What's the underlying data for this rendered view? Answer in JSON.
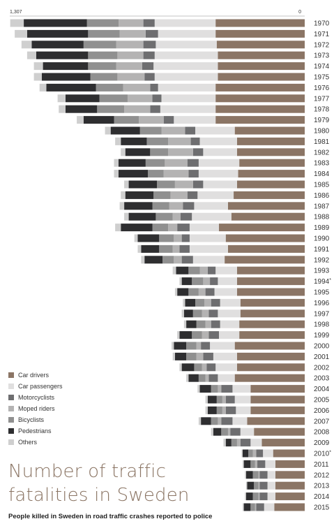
{
  "chart_data": {
    "type": "bar",
    "orientation": "horizontal-stacked",
    "title": "Number of traffic fatalities in Sweden",
    "subtitle": "People killed in Sweden in road traffic crashes reported to police",
    "axis": {
      "left_label": "1,307",
      "right_label": "0",
      "max": 1307
    },
    "categories": [
      "1970",
      "1971",
      "1972",
      "1973",
      "1974",
      "1975",
      "1976",
      "1977",
      "1978",
      "1979",
      "1980",
      "1981",
      "1982",
      "1983",
      "1984",
      "1985",
      "1986",
      "1987",
      "1988",
      "1989",
      "1990",
      "1991",
      "1992",
      "1993",
      "1994*",
      "1995",
      "1996",
      "1997",
      "1998",
      "1999",
      "2000",
      "2001",
      "2002",
      "2003",
      "2004",
      "2005",
      "2006",
      "2007",
      "2008",
      "2009",
      "2010*",
      "2011",
      "2012",
      "2013",
      "2014",
      "2015"
    ],
    "series": [
      {
        "name": "Car drivers",
        "color": "#8b7565",
        "values": [
          395,
          395,
          390,
          385,
          385,
          385,
          395,
          395,
          395,
          395,
          310,
          300,
          300,
          290,
          295,
          300,
          315,
          340,
          325,
          380,
          350,
          340,
          355,
          300,
          300,
          300,
          285,
          285,
          290,
          290,
          310,
          300,
          300,
          310,
          240,
          240,
          240,
          255,
          225,
          190,
          140,
          130,
          130,
          130,
          130,
          135
        ]
      },
      {
        "name": "Car passengers",
        "color": "#e0dfdf",
        "values": [
          270,
          255,
          270,
          280,
          285,
          280,
          255,
          240,
          245,
          185,
          175,
          165,
          150,
          180,
          175,
          150,
          160,
          150,
          175,
          130,
          160,
          170,
          140,
          95,
          85,
          100,
          90,
          100,
          85,
          90,
          110,
          105,
          95,
          75,
          80,
          70,
          65,
          65,
          60,
          50,
          45,
          45,
          35,
          35,
          35,
          45
        ]
      },
      {
        "name": "Motorcyclists",
        "color": "#6e6e70",
        "values": [
          50,
          55,
          55,
          50,
          50,
          45,
          35,
          40,
          45,
          45,
          45,
          40,
          45,
          50,
          45,
          45,
          45,
          50,
          50,
          55,
          35,
          45,
          50,
          35,
          35,
          40,
          40,
          40,
          40,
          45,
          40,
          45,
          40,
          40,
          50,
          40,
          45,
          50,
          45,
          45,
          30,
          35,
          35,
          35,
          35,
          35
        ]
      },
      {
        "name": "Moped riders",
        "color": "#b4b3b3",
        "values": [
          110,
          115,
          120,
          115,
          115,
          120,
          120,
          110,
          115,
          110,
          105,
          100,
          110,
          100,
          110,
          80,
          75,
          60,
          35,
          40,
          35,
          30,
          35,
          35,
          30,
          30,
          30,
          30,
          25,
          30,
          20,
          30,
          20,
          15,
          15,
          15,
          15,
          15,
          10,
          15,
          15,
          10,
          5,
          5,
          5,
          5
        ]
      },
      {
        "name": "Bicyclists",
        "color": "#909090",
        "values": [
          140,
          140,
          145,
          130,
          125,
          120,
          120,
          125,
          120,
          110,
          95,
          95,
          80,
          85,
          70,
          80,
          75,
          75,
          75,
          70,
          65,
          60,
          50,
          50,
          50,
          45,
          40,
          40,
          40,
          45,
          45,
          45,
          35,
          30,
          30,
          25,
          25,
          30,
          30,
          25,
          20,
          20,
          25,
          20,
          25,
          20
        ]
      },
      {
        "name": "Pedestrians",
        "color": "#2e2e30",
        "values": [
          280,
          270,
          230,
          230,
          200,
          215,
          220,
          150,
          140,
          135,
          130,
          115,
          110,
          120,
          130,
          125,
          125,
          125,
          120,
          140,
          95,
          80,
          80,
          55,
          45,
          50,
          45,
          40,
          45,
          55,
          55,
          50,
          55,
          45,
          50,
          40,
          40,
          45,
          35,
          25,
          25,
          30,
          30,
          30,
          30,
          30
        ]
      },
      {
        "name": "Others",
        "color": "#cfcfcf",
        "values": [
          60,
          55,
          45,
          40,
          40,
          35,
          30,
          35,
          30,
          30,
          25,
          25,
          20,
          20,
          20,
          20,
          20,
          20,
          20,
          25,
          15,
          15,
          15,
          15,
          10,
          10,
          10,
          10,
          10,
          10,
          10,
          10,
          10,
          10,
          10,
          10,
          10,
          10,
          10,
          10,
          5,
          5,
          5,
          5,
          5,
          5
        ]
      }
    ],
    "legend_position": "bottom-left",
    "grid": false
  },
  "legend": {
    "items": [
      {
        "label": "Car drivers",
        "color": "#8b7565"
      },
      {
        "label": "Car passengers",
        "color": "#e0dfdf"
      },
      {
        "label": "Motorcyclists",
        "color": "#6e6e70"
      },
      {
        "label": "Moped riders",
        "color": "#b4b3b3"
      },
      {
        "label": "Bicyclists",
        "color": "#909090"
      },
      {
        "label": "Pedestrians",
        "color": "#2e2e30"
      },
      {
        "label": "Others",
        "color": "#cfcfcf"
      }
    ]
  },
  "header": {
    "title": "Number of traffic fatalities in Sweden",
    "subtitle": "People killed in Sweden in road traffic crashes reported to police"
  }
}
